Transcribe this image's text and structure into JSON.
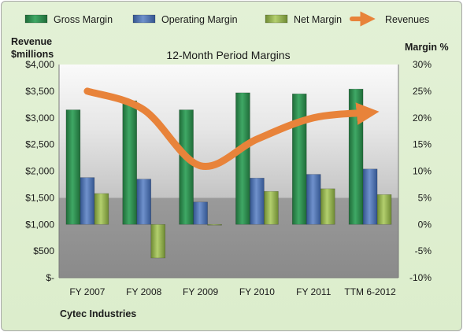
{
  "chart_data": {
    "type": "bar",
    "title": "12-Month Period Margins",
    "company": "Cytec Industries",
    "left_axis_title": [
      "Revenue",
      "$millions"
    ],
    "right_axis_title": "Margin %",
    "categories": [
      "FY 2007",
      "FY 2008",
      "FY 2009",
      "FY 2010",
      "FY 2011",
      "TTM 6-2012"
    ],
    "y_left": {
      "min": 0,
      "max": 4000,
      "step": 500,
      "tick_labels": [
        "$-",
        "$500",
        "$1,000",
        "$1,500",
        "$2,000",
        "$2,500",
        "$3,000",
        "$3,500",
        "$4,000"
      ]
    },
    "y_right": {
      "min": -10,
      "max": 30,
      "step": 5,
      "tick_labels": [
        "-10%",
        "-5%",
        "0%",
        "5%",
        "10%",
        "15%",
        "20%",
        "25%",
        "30%"
      ]
    },
    "series": [
      {
        "name": "Gross Margin",
        "axis": "right",
        "color": "#2e8b4e",
        "values": [
          21.5,
          23.2,
          21.5,
          24.7,
          24.5,
          25.4
        ]
      },
      {
        "name": "Operating Margin",
        "axis": "right",
        "color": "#4a6fb0",
        "values": [
          8.8,
          8.5,
          4.2,
          8.7,
          9.4,
          10.4
        ]
      },
      {
        "name": "Net Margin",
        "axis": "right",
        "color": "#8fb04a",
        "values": [
          5.8,
          -6.3,
          -0.1,
          6.2,
          6.7,
          5.6
        ]
      },
      {
        "name": "Revenues",
        "axis": "left",
        "type": "line",
        "color": "#e8833a",
        "values": [
          3500,
          3150,
          2100,
          2600,
          3000,
          3100
        ]
      }
    ],
    "legend_position": "top",
    "grid": false
  }
}
